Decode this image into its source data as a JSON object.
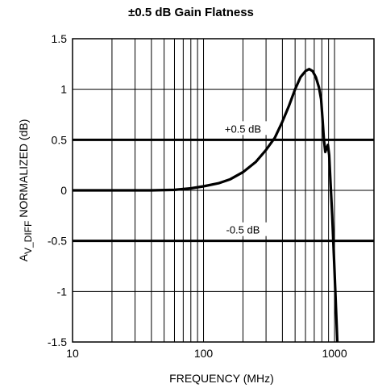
{
  "chart_data": {
    "type": "line",
    "title": "±0.5 dB Gain Flatness",
    "xlabel": "FREQUENCY (MHz)",
    "ylabel": {
      "prefix": "A",
      "subscript": "V_DIFF",
      "suffix": " NORMALIZED (dB)"
    },
    "x_scale": "log",
    "xlim": [
      10,
      2000
    ],
    "ylim": [
      -1.5,
      1.5
    ],
    "x_ticks": [
      {
        "value": 10,
        "label": "10"
      },
      {
        "value": 100,
        "label": "100"
      },
      {
        "value": 1000,
        "label": "1000"
      }
    ],
    "y_ticks": [
      {
        "value": 1.5,
        "label": "1.5"
      },
      {
        "value": 1,
        "label": "1"
      },
      {
        "value": 0.5,
        "label": "0.5"
      },
      {
        "value": 0,
        "label": "0"
      },
      {
        "value": -0.5,
        "label": "-0.5"
      },
      {
        "value": -1,
        "label": "-1"
      },
      {
        "value": -1.5,
        "label": "-1.5"
      }
    ],
    "grid": true,
    "reference_lines": [
      {
        "y": 0.5,
        "label": "+0.5 dB",
        "label_x": 200
      },
      {
        "y": -0.5,
        "label": "-0.5 dB",
        "label_x": 200
      }
    ],
    "series": [
      {
        "points": [
          [
            10,
            0
          ],
          [
            20,
            0
          ],
          [
            40,
            0
          ],
          [
            60,
            0.005
          ],
          [
            80,
            0.02
          ],
          [
            100,
            0.04
          ],
          [
            130,
            0.07
          ],
          [
            160,
            0.11
          ],
          [
            200,
            0.18
          ],
          [
            250,
            0.28
          ],
          [
            300,
            0.4
          ],
          [
            350,
            0.52
          ],
          [
            400,
            0.68
          ],
          [
            450,
            0.84
          ],
          [
            500,
            1.0
          ],
          [
            550,
            1.12
          ],
          [
            600,
            1.18
          ],
          [
            640,
            1.2
          ],
          [
            680,
            1.18
          ],
          [
            720,
            1.12
          ],
          [
            760,
            1.02
          ],
          [
            790,
            0.9
          ],
          [
            810,
            0.7
          ],
          [
            830,
            0.5
          ],
          [
            850,
            0.38
          ],
          [
            870,
            0.42
          ],
          [
            890,
            0.45
          ],
          [
            910,
            0.35
          ],
          [
            930,
            0.1
          ],
          [
            960,
            -0.25
          ],
          [
            1000,
            -0.8
          ],
          [
            1050,
            -1.5
          ]
        ]
      }
    ]
  },
  "colors": {
    "background": "#ffffff",
    "ink": "#000000"
  }
}
